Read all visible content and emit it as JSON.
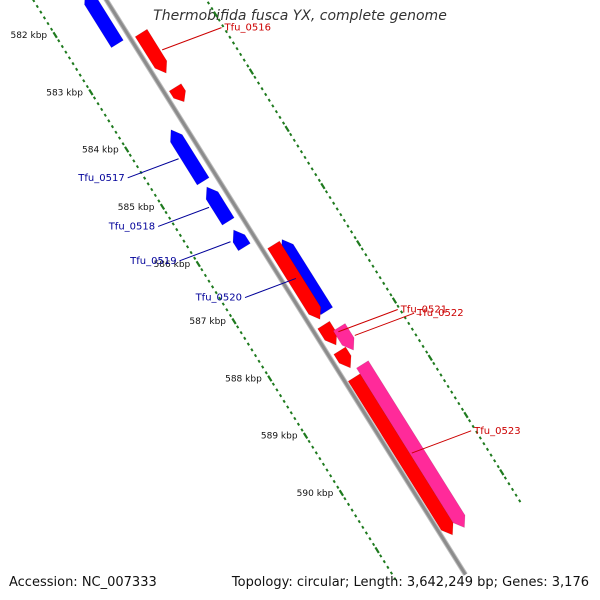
{
  "title": "Thermobifida fusca YX, complete genome",
  "footer": {
    "accession": "Accession: NC_007333",
    "summary": "Topology: circular; Length: 3,642,249 bp; Genes: 3,176"
  },
  "colors": {
    "backbone": "#8c8c8c",
    "tick": "#1e7a1e",
    "forward_gene": "#ff0000",
    "reverse_gene": "#0000ff",
    "magenta_gene": "#ff2a9a",
    "orange_gene": "#ff9900",
    "forward_label": "#cc0000",
    "reverse_label": "#000099"
  },
  "ticks": [
    {
      "kbp": 582,
      "label": "582 kbp"
    },
    {
      "kbp": 583,
      "label": "583 kbp"
    },
    {
      "kbp": 584,
      "label": "584 kbp"
    },
    {
      "kbp": 585,
      "label": "585 kbp"
    },
    {
      "kbp": 586,
      "label": "586 kbp"
    },
    {
      "kbp": 587,
      "label": "587 kbp"
    },
    {
      "kbp": 588,
      "label": "588 kbp"
    },
    {
      "kbp": 589,
      "label": "589 kbp"
    },
    {
      "kbp": 590,
      "label": "590 kbp"
    }
  ],
  "genes": [
    {
      "name": "",
      "strand": "-",
      "start": 581.7,
      "end": 582.6,
      "color": "reverse_gene"
    },
    {
      "name": "Tfu_0516",
      "strand": "+",
      "start": 582.65,
      "end": 583.35,
      "color": "forward_gene"
    },
    {
      "name": "",
      "strand": "+",
      "start": 583.6,
      "end": 583.85,
      "color": "forward_gene"
    },
    {
      "name": "Tfu_0517",
      "strand": "-",
      "start": 584.1,
      "end": 585.0,
      "color": "reverse_gene"
    },
    {
      "name": "Tfu_0518",
      "strand": "-",
      "start": 585.1,
      "end": 585.7,
      "color": "reverse_gene"
    },
    {
      "name": "Tfu_0519",
      "strand": "-",
      "start": 585.85,
      "end": 586.15,
      "color": "reverse_gene"
    },
    {
      "name": "Tfu_0520",
      "strand": "-",
      "start": 586.35,
      "end": 587.6,
      "color": "reverse_gene"
    },
    {
      "name": "",
      "strand": "+",
      "start": 586.35,
      "end": 587.65,
      "color": "forward_gene"
    },
    {
      "name": "Tfu_0521",
      "strand": "+",
      "start": 587.75,
      "end": 588.1,
      "color": "forward_gene"
    },
    {
      "name": "",
      "strand": "+",
      "start": 588.2,
      "end": 588.5,
      "color": "forward_gene"
    },
    {
      "name": "Tfu_0522",
      "strand": "+",
      "start": 587.9,
      "end": 588.3,
      "color": "magenta_gene"
    },
    {
      "name": "Tfu_0523",
      "strand": "+",
      "start": 588.65,
      "end": 591.4,
      "color": "forward_gene"
    },
    {
      "name": "",
      "strand": "+",
      "start": 588.55,
      "end": 591.4,
      "color": "magenta_gene"
    }
  ]
}
